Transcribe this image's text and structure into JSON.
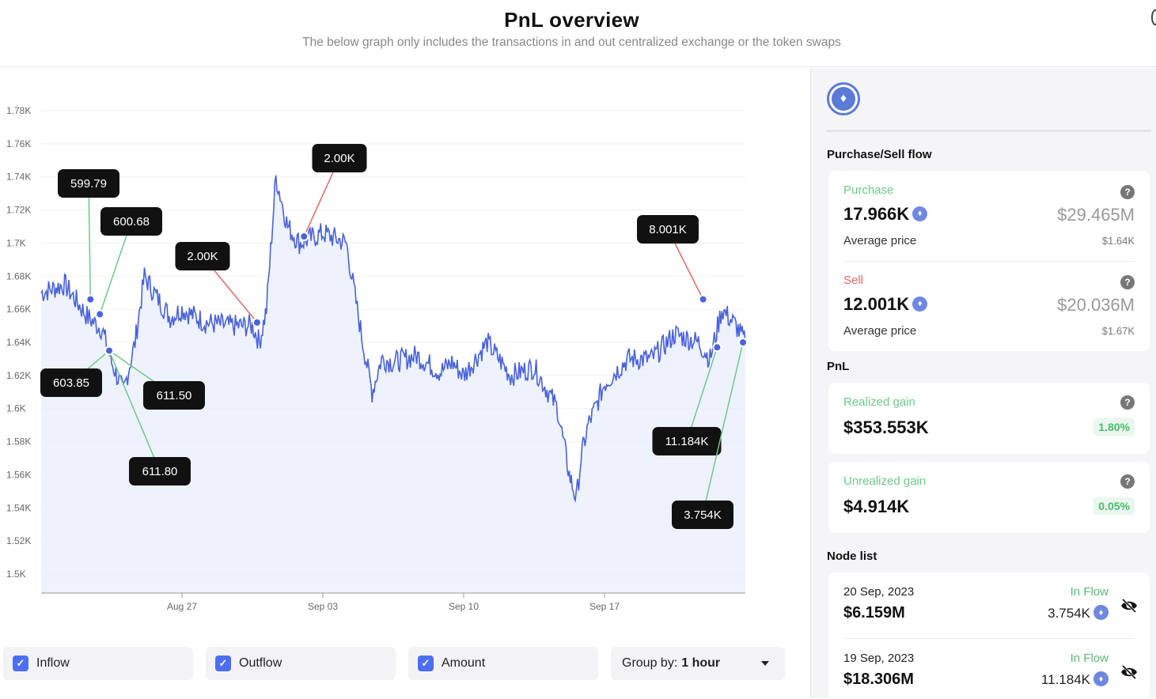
{
  "header": {
    "title": "PnL overview",
    "subtitle": "The below graph only includes the transactions in and out centralized exchange or the token swaps"
  },
  "chart_data": {
    "type": "area",
    "y_ticks": [
      "1.78K",
      "1.76K",
      "1.74K",
      "1.72K",
      "1.7K",
      "1.68K",
      "1.66K",
      "1.64K",
      "1.62K",
      "1.6K",
      "1.58K",
      "1.56K",
      "1.54K",
      "1.52K",
      "1.5K"
    ],
    "x_ticks": [
      "Aug 27",
      "Sep 03",
      "Sep 10",
      "Sep 17"
    ],
    "ylim": [
      1500,
      1780
    ],
    "x_range_days": [
      "Aug 21",
      "Sep 21"
    ],
    "grid": true,
    "series": [
      {
        "x": [
          0,
          1,
          2,
          2.6,
          3,
          3.5,
          4,
          4.4,
          4.9,
          5.5,
          6,
          7,
          8,
          9,
          9.3,
          9.6,
          10,
          10.5,
          11,
          12,
          13,
          13.7,
          14.1,
          14.5,
          15,
          16,
          17,
          17.5,
          18,
          19,
          20,
          21,
          22,
          22.5,
          22.8,
          23,
          23.3,
          23.6,
          24,
          25,
          26,
          27,
          28,
          28.5,
          29,
          29.6,
          30
        ],
        "y": [
          1670,
          1675,
          1655,
          1648,
          1628,
          1610,
          1640,
          1680,
          1668,
          1655,
          1660,
          1652,
          1650,
          1650,
          1640,
          1660,
          1740,
          1710,
          1700,
          1706,
          1700,
          1640,
          1610,
          1630,
          1628,
          1632,
          1622,
          1628,
          1620,
          1640,
          1620,
          1625,
          1600,
          1560,
          1545,
          1570,
          1590,
          1600,
          1615,
          1630,
          1630,
          1645,
          1640,
          1630,
          1660,
          1650,
          1640
        ]
      }
    ],
    "markers": [
      {
        "label": "599.79",
        "x": 2.1,
        "y": 1666,
        "kind": "inflow"
      },
      {
        "label": "600.68",
        "x": 2.5,
        "y": 1657,
        "kind": "inflow"
      },
      {
        "label": "603.85",
        "x": 2.9,
        "y": 1635,
        "kind": "inflow"
      },
      {
        "label": "611.50",
        "x": 2.9,
        "y": 1635,
        "kind": "inflow"
      },
      {
        "label": "611.80",
        "x": 2.9,
        "y": 1635,
        "kind": "inflow"
      },
      {
        "label": "2.00K",
        "x": 9.2,
        "y": 1652,
        "kind": "outflow"
      },
      {
        "label": "2.00K",
        "x": 11.2,
        "y": 1704,
        "kind": "outflow"
      },
      {
        "label": "8.001K",
        "x": 28.2,
        "y": 1666,
        "kind": "outflow"
      },
      {
        "label": "11.184K",
        "x": 28.8,
        "y": 1637,
        "kind": "inflow"
      },
      {
        "label": "3.754K",
        "x": 29.9,
        "y": 1640,
        "kind": "inflow"
      }
    ],
    "colors": {
      "line": "#4a63d9",
      "fill": "#e8edfb",
      "inflow": "#6cc98a",
      "outflow": "#e06666"
    }
  },
  "controls": {
    "inflow": "Inflow",
    "outflow": "Outflow",
    "amount": "Amount",
    "group_prefix": "Group by:",
    "group_value": "1 hour"
  },
  "panel": {
    "flow_title": "Purchase/Sell flow",
    "purchase": {
      "name": "Purchase",
      "amount": "17.966K",
      "usd": "$29.465M",
      "avg_label": "Average price",
      "avg_value": "$1.64K",
      "color": "#6cc98a"
    },
    "sell": {
      "name": "Sell",
      "amount": "12.001K",
      "usd": "$20.036M",
      "avg_label": "Average price",
      "avg_value": "$1.67K",
      "color": "#e06666"
    },
    "pnl_title": "PnL",
    "realized": {
      "name": "Realized gain",
      "value": "$353.553K",
      "pct": "1.80%"
    },
    "unrealized": {
      "name": "Unrealized gain",
      "value": "$4.914K",
      "pct": "0.05%"
    },
    "node_title": "Node list",
    "nodes": [
      {
        "date": "20 Sep, 2023",
        "amount": "$6.159M",
        "flow": "In Flow",
        "tokens": "3.754K"
      },
      {
        "date": "19 Sep, 2023",
        "amount": "$18.306M",
        "flow": "In Flow",
        "tokens": "11.184K"
      }
    ]
  },
  "icons": {
    "eth": "ethereum-icon",
    "help": "question-icon",
    "eye": "eye-off-icon"
  }
}
